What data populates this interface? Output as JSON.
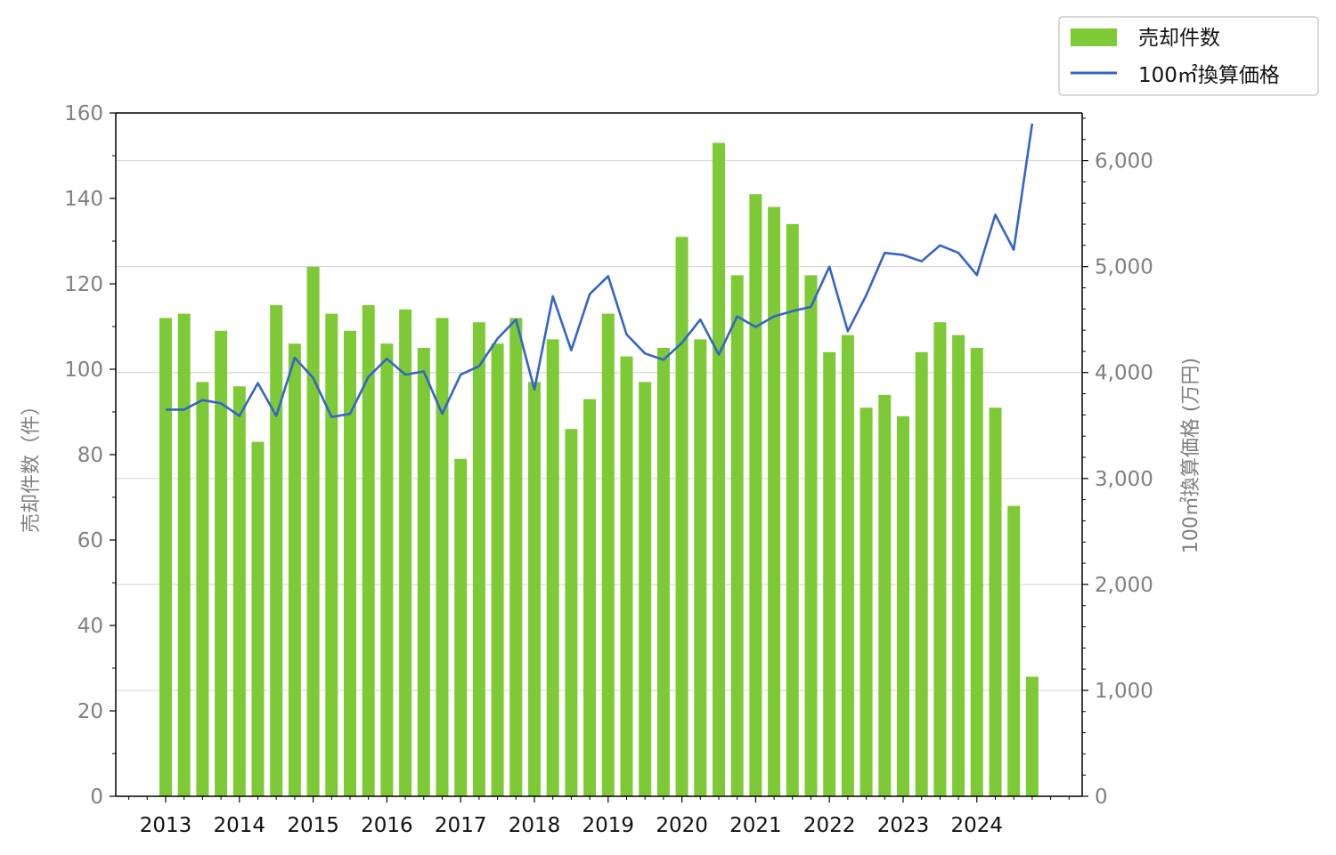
{
  "chart_data": {
    "type": "bar",
    "x_tick_labels": [
      "2013",
      "2014",
      "2015",
      "2016",
      "2017",
      "2018",
      "2019",
      "2020",
      "2021",
      "2022",
      "2023",
      "2024"
    ],
    "quarters_start": "2013 Q1",
    "y_left": {
      "label": "売却件数（件）",
      "ylim": [
        0,
        160
      ],
      "ticks": [
        "0",
        "20",
        "40",
        "60",
        "80",
        "100",
        "120",
        "140",
        "160"
      ]
    },
    "y_right": {
      "label": "100㎡換算価格 (万円)",
      "ylim": [
        0,
        6450
      ],
      "ticks": [
        "0",
        "1,000",
        "2,000",
        "3,000",
        "4,000",
        "5,000",
        "6,000"
      ]
    },
    "grid": "horizontal (right axis)",
    "legend_position": "top-right",
    "legend": [
      {
        "label": "売却件数",
        "kind": "bar",
        "color": "#7ec936"
      },
      {
        "label": "100㎡換算価格",
        "kind": "line",
        "color": "#3464c8"
      }
    ],
    "series": [
      {
        "name": "売却件数",
        "kind": "bar",
        "axis": "left",
        "color": "#7ec936",
        "values": [
          112,
          113,
          97,
          109,
          96,
          83,
          115,
          106,
          124,
          113,
          109,
          115,
          106,
          114,
          105,
          112,
          79,
          111,
          106,
          112,
          97,
          107,
          86,
          93,
          113,
          103,
          97,
          105,
          131,
          107,
          153,
          122,
          141,
          138,
          134,
          122,
          104,
          108,
          91,
          94,
          89,
          104,
          111,
          108,
          105,
          91,
          68,
          28
        ]
      },
      {
        "name": "100㎡換算価格",
        "kind": "line",
        "axis": "right",
        "color": "#3464c8",
        "values": [
          3650,
          3650,
          3740,
          3710,
          3590,
          3900,
          3590,
          4140,
          3950,
          3580,
          3610,
          3960,
          4130,
          3980,
          4010,
          3610,
          3980,
          4060,
          4320,
          4500,
          3840,
          4720,
          4210,
          4740,
          4910,
          4360,
          4180,
          4120,
          4280,
          4500,
          4170,
          4530,
          4430,
          4530,
          4580,
          4620,
          5000,
          4390,
          4730,
          5130,
          5110,
          5050,
          5200,
          5130,
          4920,
          5490,
          5160,
          6350
        ]
      }
    ]
  }
}
